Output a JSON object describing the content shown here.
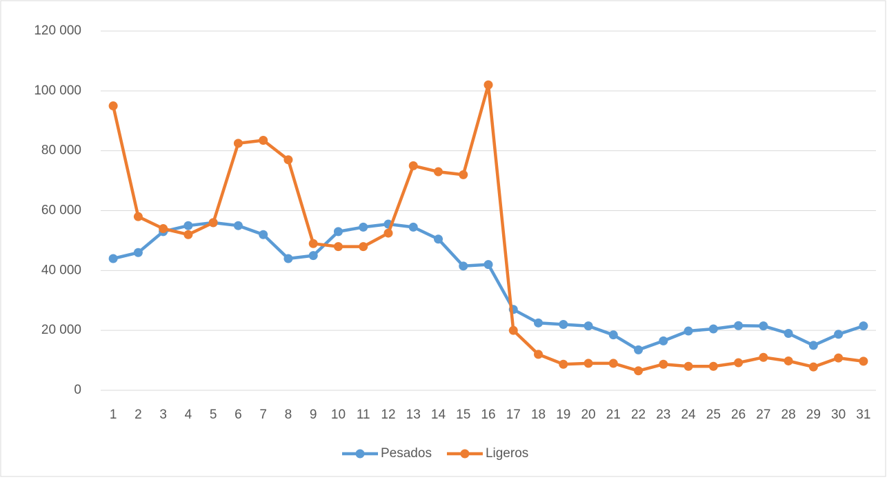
{
  "chart_data": {
    "type": "line",
    "categories": [
      "1",
      "2",
      "3",
      "4",
      "5",
      "6",
      "7",
      "8",
      "9",
      "10",
      "11",
      "12",
      "13",
      "14",
      "15",
      "16",
      "17",
      "18",
      "19",
      "20",
      "21",
      "22",
      "23",
      "24",
      "25",
      "26",
      "27",
      "28",
      "29",
      "30",
      "31"
    ],
    "series": [
      {
        "name": "Pesados",
        "color": "#5b9bd5",
        "values": [
          44000,
          46000,
          53000,
          55000,
          56000,
          55000,
          52000,
          44000,
          45000,
          53000,
          54500,
          55500,
          54500,
          50500,
          41500,
          42000,
          27000,
          22500,
          22000,
          21500,
          18500,
          13500,
          16500,
          19800,
          20500,
          21600,
          21500,
          19000,
          15000,
          18700,
          21500
        ]
      },
      {
        "name": "Ligeros",
        "color": "#ed7d31",
        "values": [
          95000,
          58000,
          54000,
          52000,
          56000,
          82500,
          83500,
          77000,
          49000,
          48000,
          48000,
          52500,
          75000,
          73000,
          72000,
          102000,
          20000,
          12000,
          8700,
          9000,
          9000,
          6500,
          8700,
          8000,
          8000,
          9200,
          11000,
          9800,
          7800,
          10800,
          9700
        ]
      }
    ],
    "ylim": [
      0,
      120000
    ],
    "yticks": [
      0,
      {
        "value": 20000,
        "label": "20 000"
      },
      {
        "value": 40000,
        "label": "40 000"
      },
      {
        "value": 60000,
        "label": "60 000"
      },
      {
        "value": 80000,
        "label": "80 000"
      },
      {
        "value": 100000,
        "label": "100 000"
      },
      {
        "value": 120000,
        "label": "120 000"
      }
    ],
    "grid": true,
    "legend": "bottom"
  }
}
